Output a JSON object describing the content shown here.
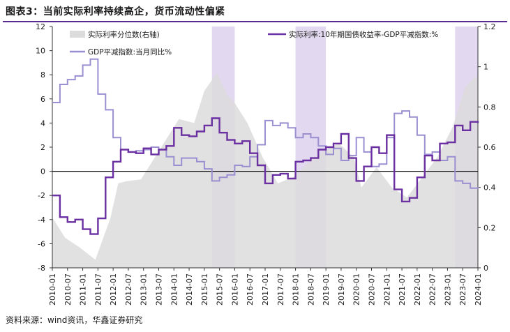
{
  "figure": {
    "title": "图表3：当前实际利率持续高企，货币流动性偏紧",
    "source": "资料来源：wind资讯，华鑫证券研究"
  },
  "chart_data": {
    "type": "line",
    "x_ticks": [
      "2010-01",
      "2010-07",
      "2011-01",
      "2011-07",
      "2012-01",
      "2012-07",
      "2013-01",
      "2013-07",
      "2014-01",
      "2014-07",
      "2015-01",
      "2015-07",
      "2016-01",
      "2016-07",
      "2017-01",
      "2017-07",
      "2018-01",
      "2018-07",
      "2019-01",
      "2019-07",
      "2020-01",
      "2020-07",
      "2021-01",
      "2021-07",
      "2022-01",
      "2022-07",
      "2023-01",
      "2023-07",
      "2024-01"
    ],
    "x_range": [
      "2010-01",
      "2024-01"
    ],
    "y_left": {
      "range": [
        -8,
        12
      ],
      "ticks": [
        12,
        10,
        8,
        6,
        4,
        2,
        0,
        -2,
        -4,
        -6,
        -8
      ]
    },
    "y_right": {
      "range": [
        0,
        1.2
      ],
      "ticks": [
        "1.2",
        "1",
        "0.8",
        "0.6",
        "0.4",
        "0.2",
        "0"
      ]
    },
    "shaded_periods": [
      [
        "2015-04",
        "2016-01"
      ],
      [
        "2018-01",
        "2019-01"
      ],
      [
        "2023-04",
        "2024-01"
      ]
    ],
    "colors": {
      "real_rate": "#6a2fa0",
      "gdp_deflator": "#9b8fd2",
      "percentile": "#dcdcdc",
      "shade": "#e2d8ef"
    },
    "legend": [
      {
        "key": "percentile",
        "label": "实际利率分位数(右轴)"
      },
      {
        "key": "real_rate",
        "label": "实际利率:10年期国债收益率-GDP平减指数:%"
      },
      {
        "key": "gdp_deflator",
        "label": "GDP平减指数:当月同比%"
      }
    ],
    "series": [
      {
        "key": "real_rate",
        "name": "实际利率:10年期国债收益率-GDP平减指数:%",
        "axis": "left",
        "style": "step",
        "points": [
          [
            "2010-01",
            -2.0
          ],
          [
            "2010-04",
            -3.8
          ],
          [
            "2010-07",
            -4.2
          ],
          [
            "2010-10",
            -4.0
          ],
          [
            "2011-01",
            -4.8
          ],
          [
            "2011-04",
            -5.2
          ],
          [
            "2011-07",
            -3.9
          ],
          [
            "2011-10",
            -0.5
          ],
          [
            "2012-01",
            0.8
          ],
          [
            "2012-04",
            1.8
          ],
          [
            "2012-07",
            1.6
          ],
          [
            "2012-10",
            1.5
          ],
          [
            "2013-01",
            1.9
          ],
          [
            "2013-04",
            1.4
          ],
          [
            "2013-07",
            1.8
          ],
          [
            "2013-10",
            2.1
          ],
          [
            "2014-01",
            3.6
          ],
          [
            "2014-04",
            3.0
          ],
          [
            "2014-07",
            2.9
          ],
          [
            "2014-10",
            3.3
          ],
          [
            "2015-01",
            3.8
          ],
          [
            "2015-04",
            4.4
          ],
          [
            "2015-07",
            3.2
          ],
          [
            "2015-10",
            2.6
          ],
          [
            "2016-01",
            2.3
          ],
          [
            "2016-04",
            2.5
          ],
          [
            "2016-07",
            1.5
          ],
          [
            "2016-10",
            0.5
          ],
          [
            "2017-01",
            -1.0
          ],
          [
            "2017-04",
            -0.3
          ],
          [
            "2017-07",
            -0.2
          ],
          [
            "2017-10",
            -0.6
          ],
          [
            "2018-01",
            0.8
          ],
          [
            "2018-04",
            0.9
          ],
          [
            "2018-07",
            1.1
          ],
          [
            "2018-10",
            1.8
          ],
          [
            "2019-01",
            2.0
          ],
          [
            "2019-04",
            2.3
          ],
          [
            "2019-07",
            3.1
          ],
          [
            "2019-10",
            1.1
          ],
          [
            "2020-01",
            -0.8
          ],
          [
            "2020-04",
            0.4
          ],
          [
            "2020-07",
            2.0
          ],
          [
            "2020-10",
            1.5
          ],
          [
            "2021-01",
            3.0
          ],
          [
            "2021-04",
            -1.5
          ],
          [
            "2021-07",
            -2.5
          ],
          [
            "2021-10",
            -2.2
          ],
          [
            "2022-01",
            -0.5
          ],
          [
            "2022-04",
            1.3
          ],
          [
            "2022-07",
            0.9
          ],
          [
            "2022-10",
            2.3
          ],
          [
            "2023-01",
            2.4
          ],
          [
            "2023-04",
            3.8
          ],
          [
            "2023-07",
            3.4
          ],
          [
            "2023-10",
            4.1
          ],
          [
            "2024-01",
            4.0
          ]
        ]
      },
      {
        "key": "gdp_deflator",
        "name": "GDP平减指数:当月同比%",
        "axis": "left",
        "style": "step",
        "points": [
          [
            "2010-01",
            5.7
          ],
          [
            "2010-04",
            7.2
          ],
          [
            "2010-07",
            7.6
          ],
          [
            "2010-10",
            7.9
          ],
          [
            "2011-01",
            8.8
          ],
          [
            "2011-04",
            9.3
          ],
          [
            "2011-07",
            6.4
          ],
          [
            "2011-10",
            5.1
          ],
          [
            "2012-01",
            2.8
          ],
          [
            "2012-04",
            1.8
          ],
          [
            "2012-07",
            1.6
          ],
          [
            "2012-10",
            1.7
          ],
          [
            "2013-01",
            1.8
          ],
          [
            "2013-04",
            2.0
          ],
          [
            "2013-07",
            1.8
          ],
          [
            "2013-10",
            1.2
          ],
          [
            "2014-01",
            0.5
          ],
          [
            "2014-04",
            1.1
          ],
          [
            "2014-07",
            1.1
          ],
          [
            "2014-10",
            0.8
          ],
          [
            "2015-01",
            0.2
          ],
          [
            "2015-04",
            -0.8
          ],
          [
            "2015-07",
            -0.5
          ],
          [
            "2015-10",
            -0.3
          ],
          [
            "2016-01",
            0.5
          ],
          [
            "2016-04",
            0.4
          ],
          [
            "2016-07",
            1.2
          ],
          [
            "2016-10",
            2.2
          ],
          [
            "2017-01",
            4.2
          ],
          [
            "2017-04",
            3.8
          ],
          [
            "2017-07",
            4.0
          ],
          [
            "2017-10",
            3.6
          ],
          [
            "2018-01",
            2.8
          ],
          [
            "2018-04",
            3.1
          ],
          [
            "2018-07",
            2.8
          ],
          [
            "2018-10",
            2.1
          ],
          [
            "2019-01",
            1.4
          ],
          [
            "2019-04",
            1.9
          ],
          [
            "2019-07",
            0.9
          ],
          [
            "2019-10",
            1.3
          ],
          [
            "2020-01",
            2.8
          ],
          [
            "2020-04",
            1.6
          ],
          [
            "2020-07",
            0.4
          ],
          [
            "2020-10",
            0.6
          ],
          [
            "2021-01",
            2.8
          ],
          [
            "2021-04",
            4.8
          ],
          [
            "2021-07",
            5.0
          ],
          [
            "2021-10",
            4.5
          ],
          [
            "2022-01",
            3.0
          ],
          [
            "2022-04",
            1.4
          ],
          [
            "2022-07",
            1.6
          ],
          [
            "2022-10",
            0.9
          ],
          [
            "2023-01",
            1.2
          ],
          [
            "2023-04",
            -0.8
          ],
          [
            "2023-07",
            -1.0
          ],
          [
            "2023-10",
            -1.4
          ],
          [
            "2024-01",
            -1.3
          ]
        ]
      },
      {
        "key": "percentile",
        "name": "实际利率分位数(右轴)",
        "axis": "right",
        "style": "area",
        "points": [
          [
            "2010-01",
            0.25
          ],
          [
            "2010-06",
            0.15
          ],
          [
            "2010-12",
            0.1
          ],
          [
            "2011-06",
            0.04
          ],
          [
            "2011-12",
            0.25
          ],
          [
            "2012-03",
            0.42
          ],
          [
            "2012-06",
            0.43
          ],
          [
            "2012-12",
            0.44
          ],
          [
            "2013-03",
            0.5
          ],
          [
            "2013-09",
            0.62
          ],
          [
            "2014-03",
            0.74
          ],
          [
            "2014-09",
            0.72
          ],
          [
            "2015-01",
            0.88
          ],
          [
            "2015-06",
            0.97
          ],
          [
            "2015-10",
            0.86
          ],
          [
            "2016-01",
            0.82
          ],
          [
            "2016-06",
            0.72
          ],
          [
            "2016-12",
            0.55
          ],
          [
            "2017-06",
            0.42
          ],
          [
            "2017-12",
            0.45
          ],
          [
            "2018-06",
            0.52
          ],
          [
            "2018-12",
            0.58
          ],
          [
            "2019-06",
            0.62
          ],
          [
            "2019-12",
            0.55
          ],
          [
            "2020-03",
            0.4
          ],
          [
            "2020-09",
            0.5
          ],
          [
            "2021-03",
            0.4
          ],
          [
            "2021-09",
            0.35
          ],
          [
            "2022-03",
            0.45
          ],
          [
            "2022-09",
            0.55
          ],
          [
            "2023-03",
            0.7
          ],
          [
            "2023-08",
            0.9
          ],
          [
            "2023-12",
            0.95
          ],
          [
            "2024-01",
            0.93
          ]
        ]
      }
    ]
  }
}
